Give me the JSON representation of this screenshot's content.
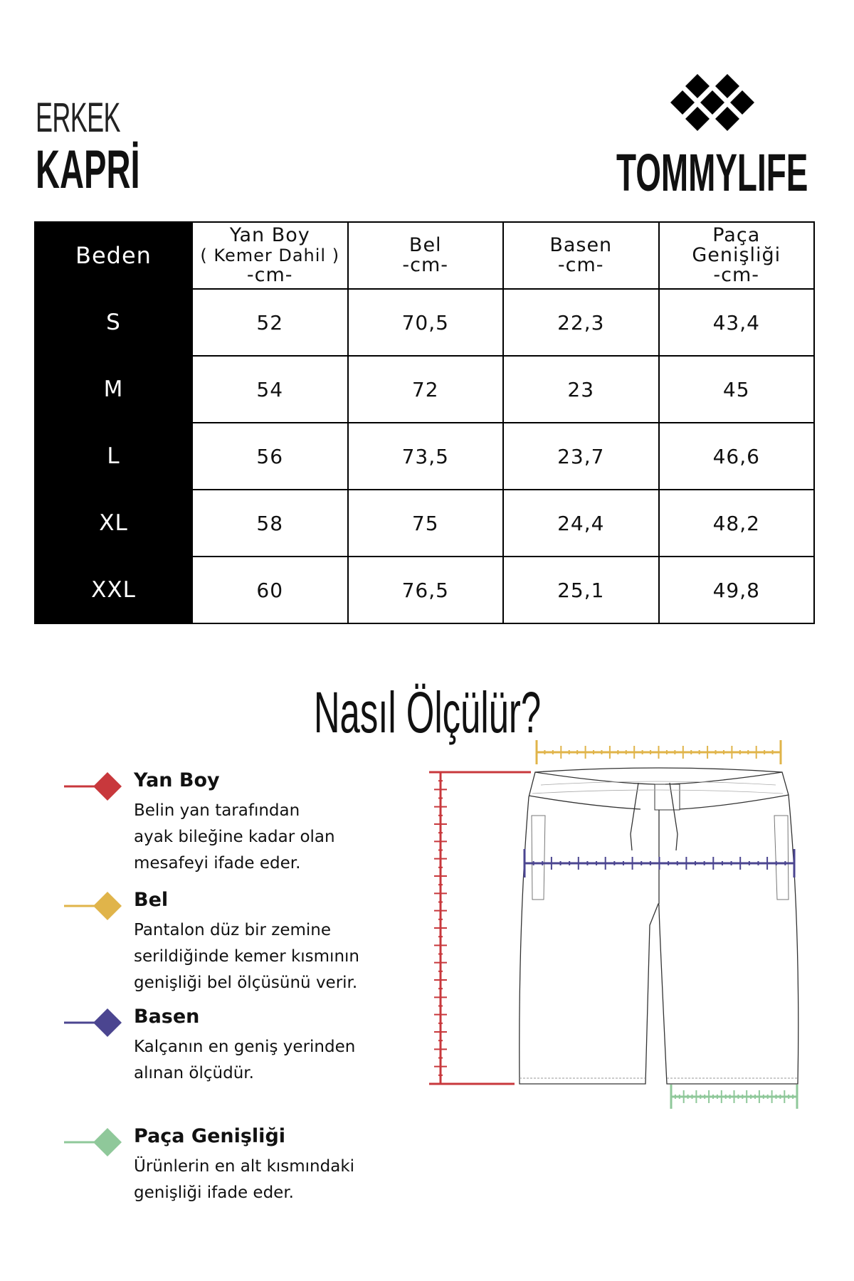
{
  "header": {
    "category": "ERKEK",
    "product": "KAPRİ",
    "brand": "TOMMYLIFE"
  },
  "table": {
    "headers": [
      {
        "lines": [
          "Beden"
        ]
      },
      {
        "lines": [
          "Yan Boy",
          "( Kemer Dahil )",
          "-cm-"
        ]
      },
      {
        "lines": [
          "Bel",
          "-cm-"
        ]
      },
      {
        "lines": [
          "Basen",
          "-cm-"
        ]
      },
      {
        "lines": [
          "Paça",
          "Genişliği",
          "-cm-"
        ]
      }
    ],
    "rows": [
      [
        "S",
        "52",
        "70,5",
        "22,3",
        "43,4"
      ],
      [
        "M",
        "54",
        "72",
        "23",
        "45"
      ],
      [
        "L",
        "56",
        "73,5",
        "23,7",
        "46,6"
      ],
      [
        "XL",
        "58",
        "75",
        "24,4",
        "48,2"
      ],
      [
        "XXL",
        "60",
        "76,5",
        "25,1",
        "49,8"
      ]
    ]
  },
  "guide": {
    "title": "Nasıl Ölçülür?",
    "items": [
      {
        "title": "Yan Boy",
        "text": [
          "Belin yan tarafından",
          "ayak bileğine kadar olan",
          "mesafeyi ifade eder."
        ],
        "color": "#c8383c"
      },
      {
        "title": "Bel",
        "text": [
          "Pantalon düz bir zemine",
          "serildiğinde kemer kısmının",
          "genişliği bel ölçüsünü verir."
        ],
        "color": "#e0b44a"
      },
      {
        "title": "Basen",
        "text": [
          "Kalçanın en geniş yerinden",
          "alınan ölçüdür."
        ],
        "color": "#4b4590"
      },
      {
        "title": "Paça Genişliği",
        "text": [
          "Ürünlerin en alt kısmındaki",
          "genişliği ifade eder."
        ],
        "color": "#8fc89a"
      }
    ]
  }
}
